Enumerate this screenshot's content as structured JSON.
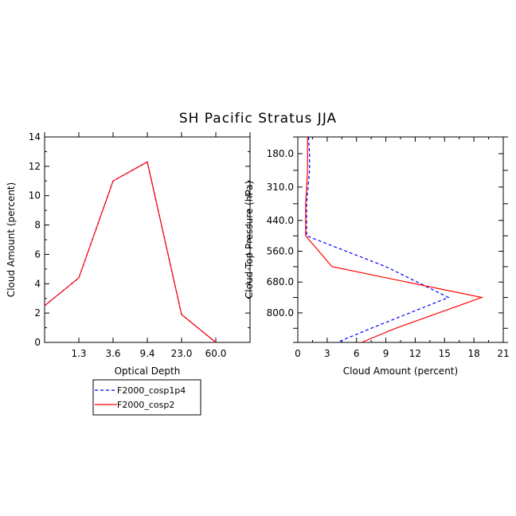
{
  "title": "SH Pacific Stratus JJA",
  "colors": {
    "cosp1p4": "#0000ff",
    "cosp2": "#ff0000",
    "axis": "#000000"
  },
  "legend": {
    "placement": "bottom-left",
    "items": [
      "F2000_cosp1p4",
      "F2000_cosp2"
    ]
  },
  "chart_data": [
    {
      "type": "line",
      "xlabel": "Optical Depth",
      "ylabel": "Cloud Amount (percent)",
      "x_ticks": [
        "1.3",
        "3.6",
        "9.4",
        "23.0",
        "60.0"
      ],
      "x_bins": 6,
      "ylim": [
        0,
        14
      ],
      "y_ticks": [
        0,
        2,
        4,
        6,
        8,
        10,
        12,
        14
      ],
      "series": [
        {
          "name": "F2000_cosp1p4",
          "style": "dashed",
          "values": [
            2.5,
            4.4,
            11.0,
            12.3,
            1.9,
            0.0
          ]
        },
        {
          "name": "F2000_cosp2",
          "style": "solid",
          "values": [
            2.5,
            4.4,
            11.0,
            12.3,
            1.9,
            0.0
          ]
        }
      ]
    },
    {
      "type": "line",
      "xlabel": "Cloud Amount (percent)",
      "ylabel": "Cloud Top Pressure (hPa)",
      "xlim": [
        0,
        21
      ],
      "x_ticks": [
        0,
        3,
        6,
        9,
        12,
        15,
        18,
        21
      ],
      "ylim": [
        115,
        915
      ],
      "y_ticks": [
        "180.0",
        "310.0",
        "440.0",
        "560.0",
        "680.0",
        "800.0"
      ],
      "series": [
        {
          "name": "F2000_cosp1p4",
          "style": "dashed",
          "pressure": [
            115,
            180,
            245,
            375,
            500,
            620,
            740,
            860,
            915
          ],
          "values": [
            1.1,
            1.2,
            1.2,
            0.9,
            0.9,
            9.0,
            15.4,
            7.5,
            4.0
          ]
        },
        {
          "name": "F2000_cosp2",
          "style": "solid",
          "pressure": [
            115,
            180,
            245,
            375,
            500,
            620,
            740,
            860,
            915
          ],
          "values": [
            1.0,
            1.0,
            1.0,
            0.8,
            0.8,
            3.5,
            18.8,
            10.0,
            6.5
          ]
        }
      ]
    }
  ]
}
